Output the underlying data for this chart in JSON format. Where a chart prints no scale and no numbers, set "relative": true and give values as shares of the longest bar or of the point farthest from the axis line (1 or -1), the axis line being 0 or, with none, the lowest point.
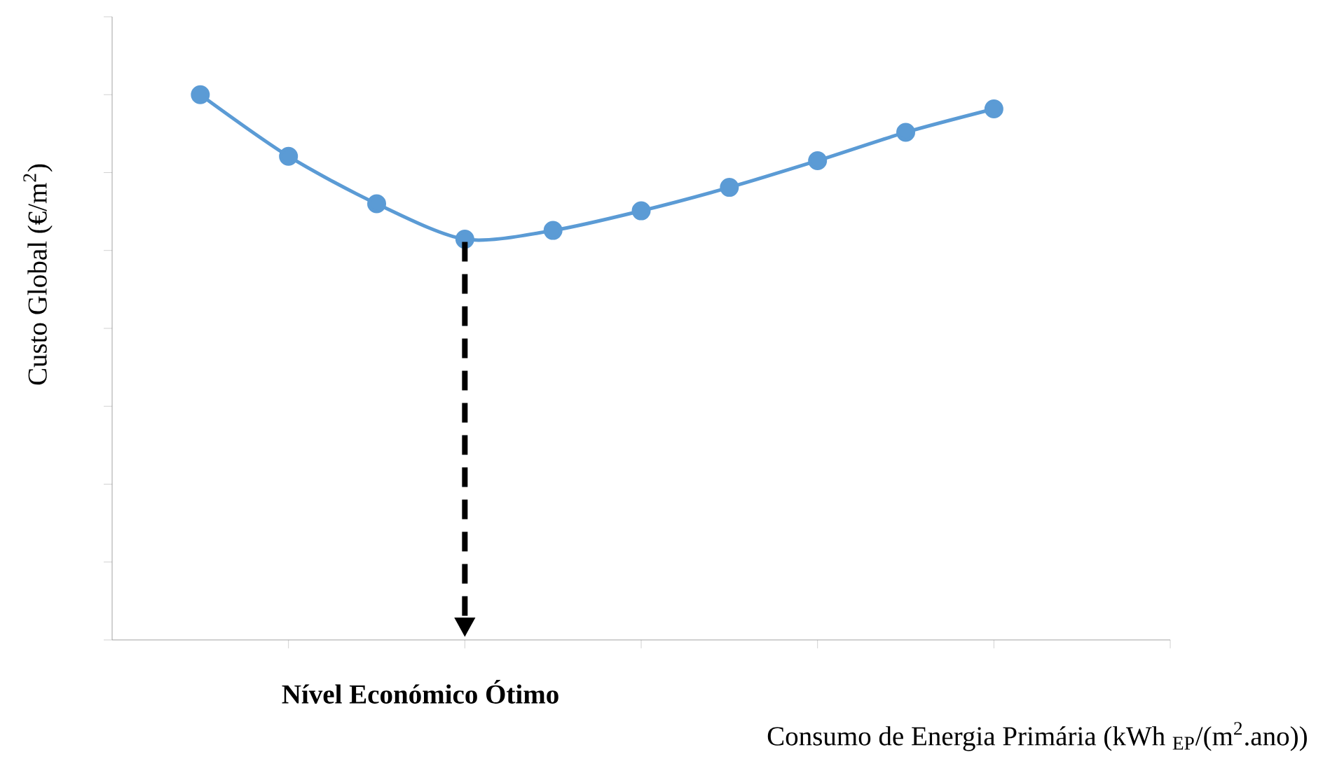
{
  "chart_data": {
    "type": "line",
    "relative": true,
    "ylabel": "Custo Global (€/m$^{2}$)",
    "xlabel": "Consumo de Energia Primária (kWh $_{EP}$/(m$^{2}$.ano))",
    "categories": [
      null,
      null,
      null,
      null,
      null,
      null,
      null,
      null,
      null,
      null
    ],
    "series": [
      {
        "color": "#5b9bd5",
        "values": [
          1,
          0.887,
          0.8,
          0.735,
          0.751,
          0.787,
          0.83,
          0.879,
          0.931,
          0.974
        ]
      }
    ],
    "marker": "circle",
    "line_style": "solid",
    "grid": false,
    "annotations": [
      "**Nível Económico Ótimo**"
    ]
  }
}
